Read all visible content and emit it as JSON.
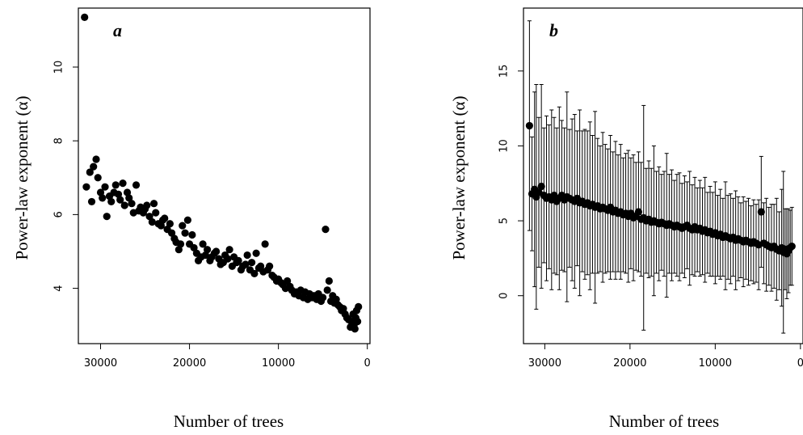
{
  "chart_data": [
    {
      "type": "scatter",
      "panel_label": "a",
      "xlabel": "Number of trees",
      "ylabel": "Power-law exponent (α)",
      "xlim": [
        32500,
        -300
      ],
      "ylim": [
        2.5,
        11.6
      ],
      "x_ticks": [
        30000,
        20000,
        10000,
        0
      ],
      "y_ticks": [
        4,
        6,
        8,
        10
      ],
      "grid": false,
      "series": [
        {
          "x": [
            31800,
            31600,
            31200,
            31000,
            30800,
            30500,
            30300,
            30000,
            29800,
            29500,
            29300,
            29000,
            28800,
            28500,
            28300,
            28000,
            27800,
            27500,
            27300,
            27000,
            26800,
            26500,
            26300,
            26000,
            25700,
            25500,
            25200,
            25000,
            24800,
            24500,
            24200,
            24000,
            23800,
            23500,
            23200,
            23000,
            22800,
            22500,
            22200,
            22000,
            21700,
            21500,
            21200,
            21000,
            20800,
            20500,
            20200,
            20000,
            19700,
            19500,
            19200,
            19000,
            18700,
            18500,
            18200,
            18000,
            17700,
            17500,
            17200,
            17000,
            16700,
            16500,
            16200,
            16000,
            15700,
            15500,
            15200,
            15000,
            14700,
            14500,
            14200,
            14000,
            13700,
            13500,
            13200,
            13000,
            12700,
            12500,
            12200,
            12000,
            11700,
            11500,
            11200,
            11000,
            10700,
            10500,
            10200,
            10000,
            9700,
            9500,
            9200,
            9000,
            8700,
            8500,
            8200,
            8000,
            7700,
            7500,
            7200,
            7000,
            6700,
            6500,
            6200,
            6000,
            5700,
            5500,
            5200,
            5000,
            4700,
            4500,
            4300,
            4100,
            3900,
            3700,
            3500,
            3300,
            3100,
            2900,
            2700,
            2500,
            2300,
            2100,
            1900,
            1800,
            1700,
            1600,
            1500,
            1400,
            1300,
            1200,
            1100,
            1000
          ],
          "y": [
            11.35,
            6.75,
            7.15,
            6.35,
            7.3,
            7.5,
            7.0,
            6.6,
            6.45,
            6.75,
            5.95,
            6.5,
            6.35,
            6.6,
            6.8,
            6.55,
            6.4,
            6.85,
            6.25,
            6.6,
            6.45,
            6.3,
            6.05,
            6.8,
            6.1,
            6.2,
            6.05,
            6.15,
            6.25,
            5.95,
            5.8,
            6.3,
            6.05,
            5.75,
            5.7,
            5.85,
            5.9,
            5.6,
            5.75,
            5.5,
            5.35,
            5.25,
            5.05,
            5.2,
            5.7,
            5.5,
            5.85,
            5.2,
            5.45,
            5.1,
            4.95,
            4.75,
            4.85,
            5.2,
            4.9,
            5.05,
            4.75,
            4.85,
            4.95,
            5.0,
            4.8,
            4.65,
            4.7,
            4.9,
            4.8,
            5.05,
            4.6,
            4.85,
            4.7,
            4.75,
            4.5,
            4.6,
            4.65,
            4.9,
            4.5,
            4.7,
            4.4,
            4.95,
            4.55,
            4.6,
            4.45,
            5.2,
            4.5,
            4.6,
            4.35,
            4.3,
            4.2,
            4.25,
            4.15,
            4.1,
            4.0,
            4.2,
            4.05,
            3.95,
            3.85,
            3.9,
            3.8,
            3.95,
            3.75,
            3.9,
            3.7,
            3.85,
            3.75,
            3.8,
            3.7,
            3.85,
            3.65,
            3.75,
            5.6,
            3.95,
            4.2,
            3.65,
            3.8,
            3.6,
            3.7,
            3.55,
            3.5,
            3.4,
            3.45,
            3.3,
            3.2,
            3.15,
            2.95,
            3.1,
            3.05,
            3.3,
            3.0,
            2.9,
            3.2,
            3.4,
            3.1,
            3.5
          ]
        }
      ]
    },
    {
      "type": "scatter",
      "panel_label": "b",
      "xlabel": "Number of trees",
      "ylabel": "Power-law exponent (α)",
      "xlim": [
        32500,
        -300
      ],
      "ylim": [
        -3.2,
        19.2
      ],
      "x_ticks": [
        30000,
        20000,
        10000,
        0
      ],
      "y_ticks": [
        0,
        5,
        10,
        15
      ],
      "grid": false,
      "error_bars": true,
      "series": [
        {
          "x": [
            31800,
            31500,
            31200,
            31000,
            30700,
            30400,
            30100,
            29800,
            29500,
            29200,
            28900,
            28600,
            28300,
            28000,
            27700,
            27400,
            27100,
            26800,
            26500,
            26200,
            25900,
            25600,
            25300,
            25000,
            24700,
            24400,
            24100,
            23800,
            23500,
            23200,
            22900,
            22600,
            22300,
            22000,
            21700,
            21400,
            21100,
            20800,
            20500,
            20200,
            19900,
            19600,
            19300,
            19000,
            18700,
            18400,
            18100,
            17800,
            17500,
            17200,
            16900,
            16600,
            16300,
            16000,
            15700,
            15400,
            15100,
            14800,
            14500,
            14200,
            13900,
            13600,
            13300,
            13000,
            12700,
            12400,
            12100,
            11800,
            11500,
            11200,
            10900,
            10600,
            10300,
            10000,
            9700,
            9400,
            9100,
            8800,
            8500,
            8200,
            7900,
            7600,
            7300,
            7000,
            6700,
            6400,
            6100,
            5800,
            5500,
            5200,
            4900,
            4600,
            4300,
            4000,
            3700,
            3400,
            3100,
            2800,
            2500,
            2200,
            2000,
            1800,
            1600,
            1400,
            1200,
            1000
          ],
          "y": [
            11.35,
            6.8,
            7.1,
            6.6,
            6.9,
            7.3,
            6.7,
            6.5,
            6.6,
            6.4,
            6.7,
            6.3,
            6.5,
            6.7,
            6.4,
            6.6,
            6.5,
            6.4,
            6.3,
            6.5,
            6.2,
            6.3,
            6.1,
            6.2,
            6.0,
            6.1,
            5.9,
            6.0,
            5.8,
            5.9,
            5.8,
            5.7,
            5.9,
            5.6,
            5.7,
            5.5,
            5.6,
            5.4,
            5.5,
            5.3,
            5.5,
            5.2,
            5.3,
            5.6,
            5.1,
            5.2,
            5.0,
            5.1,
            4.9,
            5.0,
            4.9,
            4.8,
            4.9,
            4.8,
            4.7,
            4.8,
            4.7,
            4.6,
            4.7,
            4.6,
            4.5,
            4.6,
            4.7,
            4.5,
            4.4,
            4.6,
            4.4,
            4.5,
            4.3,
            4.4,
            4.2,
            4.3,
            4.1,
            4.2,
            4.0,
            4.1,
            3.9,
            4.0,
            3.9,
            3.8,
            3.9,
            3.7,
            3.8,
            3.7,
            3.6,
            3.7,
            3.6,
            3.5,
            3.6,
            3.5,
            3.4,
            5.6,
            3.5,
            3.4,
            3.3,
            3.2,
            3.3,
            3.1,
            3.0,
            3.2,
            2.9,
            3.1,
            2.8,
            3.0,
            3.2,
            3.3
          ],
          "error": [
            7.0,
            3.8,
            6.5,
            7.5,
            5.0,
            6.8,
            4.5,
            5.5,
            4.8,
            6.0,
            5.2,
            4.9,
            6.1,
            5.0,
            4.8,
            7.0,
            4.6,
            5.4,
            5.8,
            4.5,
            6.2,
            4.7,
            5.0,
            4.8,
            5.6,
            4.6,
            6.4,
            4.5,
            4.2,
            5.0,
            4.3,
            4.1,
            4.8,
            4.0,
            4.6,
            3.9,
            4.5,
            3.8,
            4.0,
            4.4,
            3.7,
            4.2,
            3.6,
            4.0,
            3.8,
            7.5,
            3.5,
            3.9,
            3.6,
            5.0,
            3.4,
            3.8,
            3.2,
            3.5,
            4.8,
            3.3,
            3.7,
            3.1,
            3.4,
            3.6,
            3.0,
            3.4,
            2.9,
            3.8,
            3.0,
            3.3,
            2.8,
            3.2,
            2.9,
            3.5,
            2.7,
            3.0,
            2.8,
            3.4,
            2.7,
            3.0,
            2.6,
            3.6,
            2.8,
            3.0,
            2.6,
            3.3,
            2.8,
            2.5,
            3.0,
            2.6,
            2.9,
            2.5,
            2.8,
            2.6,
            3.0,
            3.7,
            2.7,
            3.1,
            2.6,
            2.9,
            2.8,
            3.4,
            2.6,
            3.9,
            5.4,
            2.7,
            3.0,
            2.8,
            2.5,
            2.6
          ]
        }
      ]
    }
  ]
}
